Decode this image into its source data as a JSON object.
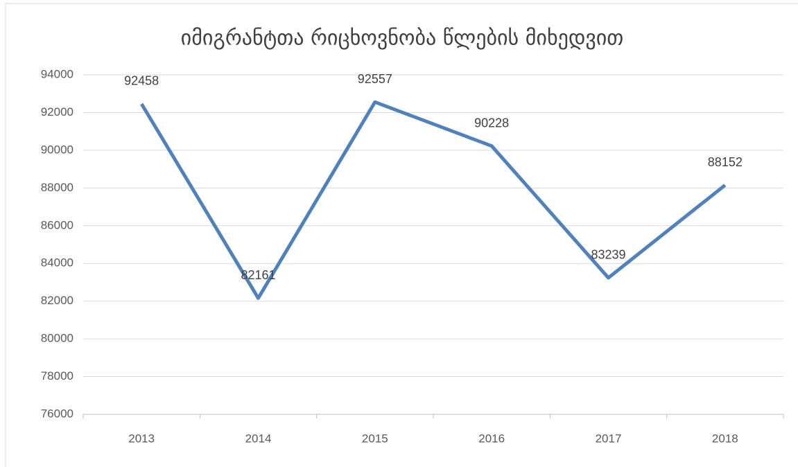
{
  "chart_data": {
    "type": "line",
    "title": "იმიგრანტთა რიცხოვნობა წლების მიხედვით",
    "categories": [
      "2013",
      "2014",
      "2015",
      "2016",
      "2017",
      "2018"
    ],
    "values": [
      92458,
      82161,
      92557,
      90228,
      83239,
      88152
    ],
    "color": "#4f81bd",
    "ylim": [
      76000,
      94000
    ],
    "yticks": [
      76000,
      78000,
      80000,
      82000,
      84000,
      86000,
      88000,
      90000,
      92000,
      94000
    ],
    "grid": true
  }
}
